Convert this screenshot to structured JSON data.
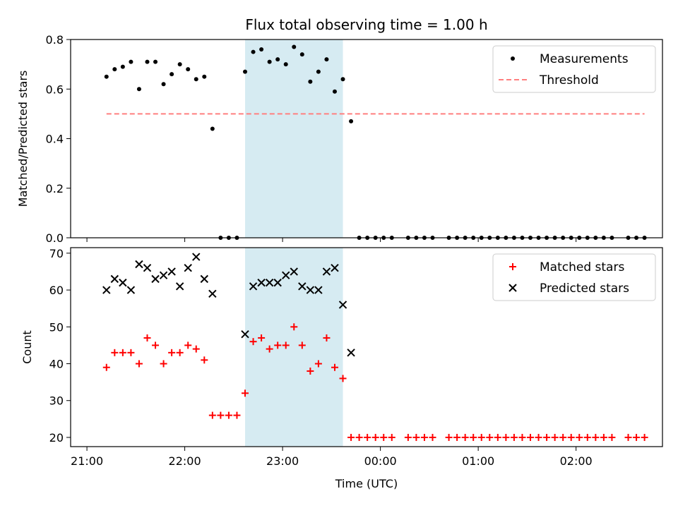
{
  "chart_data": {
    "title": "Flux total observing time = 1.00 h",
    "xlabel": "Time (UTC)",
    "x_ticks": [
      "21:00",
      "22:00",
      "23:00",
      "00:00",
      "01:00",
      "02:00"
    ],
    "highlight_span": {
      "start": "22:37",
      "end": "23:37",
      "color": "#add8e6"
    },
    "panels": [
      {
        "type": "scatter",
        "ylabel": "Matched/Predicted stars",
        "ylim": [
          0,
          0.8
        ],
        "y_ticks": [
          "0.0",
          "0.2",
          "0.4",
          "0.6",
          "0.8"
        ],
        "legend_position": "top-right",
        "series": [
          {
            "name": "Measurements",
            "marker": "dot",
            "color": "#000000",
            "x": [
              "21:12",
              "21:17",
              "21:22",
              "21:27",
              "21:32",
              "21:37",
              "21:42",
              "21:47",
              "21:52",
              "21:57",
              "22:02",
              "22:07",
              "22:12",
              "22:17",
              "22:22",
              "22:27",
              "22:32",
              "22:37",
              "22:42",
              "22:47",
              "22:52",
              "22:57",
              "23:02",
              "23:07",
              "23:12",
              "23:17",
              "23:22",
              "23:27",
              "23:32",
              "23:37",
              "23:42",
              "23:47",
              "23:52",
              "23:57",
              "00:02",
              "00:07",
              "00:17",
              "00:22",
              "00:27",
              "00:32",
              "00:42",
              "00:47",
              "00:52",
              "00:57",
              "01:02",
              "01:07",
              "01:12",
              "01:17",
              "01:22",
              "01:27",
              "01:32",
              "01:37",
              "01:42",
              "01:47",
              "01:52",
              "01:57",
              "02:02",
              "02:07",
              "02:12",
              "02:17",
              "02:22",
              "02:32",
              "02:37",
              "02:42"
            ],
            "y": [
              0.65,
              0.68,
              0.69,
              0.71,
              0.6,
              0.71,
              0.71,
              0.62,
              0.66,
              0.7,
              0.68,
              0.64,
              0.65,
              0.44,
              0,
              0,
              0,
              0.67,
              0.75,
              0.76,
              0.71,
              0.72,
              0.7,
              0.77,
              0.74,
              0.63,
              0.67,
              0.72,
              0.59,
              0.64,
              0.47,
              0,
              0,
              0,
              0,
              0,
              0,
              0,
              0,
              0,
              0,
              0,
              0,
              0,
              0,
              0,
              0,
              0,
              0,
              0,
              0,
              0,
              0,
              0,
              0,
              0,
              0,
              0,
              0,
              0,
              0,
              0,
              0,
              0
            ]
          },
          {
            "name": "Threshold",
            "marker": "dashed-line",
            "color": "#ff7f7f",
            "x": [
              "21:12",
              "02:42"
            ],
            "y": [
              0.5,
              0.5
            ]
          }
        ]
      },
      {
        "type": "scatter",
        "ylabel": "Count",
        "ylim": [
          17.5,
          71.5
        ],
        "y_ticks": [
          "20",
          "30",
          "40",
          "50",
          "60",
          "70"
        ],
        "legend_position": "top-right",
        "series": [
          {
            "name": "Matched stars",
            "marker": "plus",
            "color": "#ff0000",
            "x": [
              "21:12",
              "21:17",
              "21:22",
              "21:27",
              "21:32",
              "21:37",
              "21:42",
              "21:47",
              "21:52",
              "21:57",
              "22:02",
              "22:07",
              "22:12",
              "22:17",
              "22:22",
              "22:27",
              "22:32",
              "22:37",
              "22:42",
              "22:47",
              "22:52",
              "22:57",
              "23:02",
              "23:07",
              "23:12",
              "23:17",
              "23:22",
              "23:27",
              "23:32",
              "23:37",
              "23:42",
              "23:47",
              "23:52",
              "23:57",
              "00:02",
              "00:07",
              "00:17",
              "00:22",
              "00:27",
              "00:32",
              "00:42",
              "00:47",
              "00:52",
              "00:57",
              "01:02",
              "01:07",
              "01:12",
              "01:17",
              "01:22",
              "01:27",
              "01:32",
              "01:37",
              "01:42",
              "01:47",
              "01:52",
              "01:57",
              "02:02",
              "02:07",
              "02:12",
              "02:17",
              "02:22",
              "02:32",
              "02:37",
              "02:42"
            ],
            "y": [
              39,
              43,
              43,
              43,
              40,
              47,
              45,
              40,
              43,
              43,
              45,
              44,
              41,
              26,
              26,
              26,
              26,
              32,
              46,
              47,
              44,
              45,
              45,
              50,
              45,
              38,
              40,
              47,
              39,
              36,
              20,
              20,
              20,
              20,
              20,
              20,
              20,
              20,
              20,
              20,
              20,
              20,
              20,
              20,
              20,
              20,
              20,
              20,
              20,
              20,
              20,
              20,
              20,
              20,
              20,
              20,
              20,
              20,
              20,
              20,
              20,
              20,
              20,
              20
            ]
          },
          {
            "name": "Predicted stars",
            "marker": "x",
            "color": "#000000",
            "x": [
              "21:12",
              "21:17",
              "21:22",
              "21:27",
              "21:32",
              "21:37",
              "21:42",
              "21:47",
              "21:52",
              "21:57",
              "22:02",
              "22:07",
              "22:12",
              "22:17",
              "22:37",
              "22:42",
              "22:47",
              "22:52",
              "22:57",
              "23:02",
              "23:07",
              "23:12",
              "23:17",
              "23:22",
              "23:27",
              "23:32",
              "23:37",
              "23:42"
            ],
            "y": [
              60,
              63,
              62,
              60,
              67,
              66,
              63,
              64,
              65,
              61,
              66,
              69,
              63,
              59,
              48,
              61,
              62,
              62,
              62,
              64,
              65,
              61,
              60,
              60,
              65,
              66,
              56,
              43
            ]
          }
        ]
      }
    ]
  }
}
